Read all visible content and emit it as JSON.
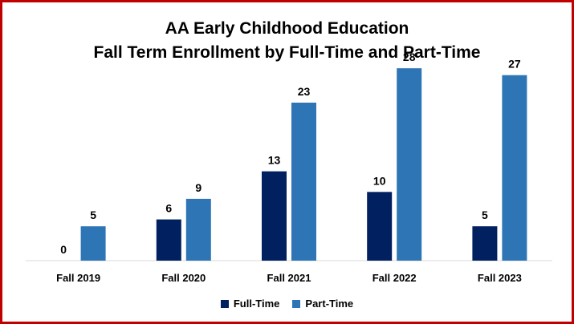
{
  "chart_data": {
    "type": "bar",
    "title": "AA Early Childhood Education",
    "subtitle": "Fall Term Enrollment by Full-Time and Part-Time",
    "categories": [
      "Fall 2019",
      "Fall 2020",
      "Fall 2021",
      "Fall 2022",
      "Fall 2023"
    ],
    "series": [
      {
        "name": "Full-Time",
        "values": [
          0,
          6,
          13,
          10,
          5
        ],
        "color": "#002060"
      },
      {
        "name": "Part-Time",
        "values": [
          5,
          9,
          23,
          28,
          27
        ],
        "color": "#2e75b6"
      }
    ],
    "ylim": [
      0,
      30
    ],
    "grid": false,
    "legend_position": "bottom"
  }
}
